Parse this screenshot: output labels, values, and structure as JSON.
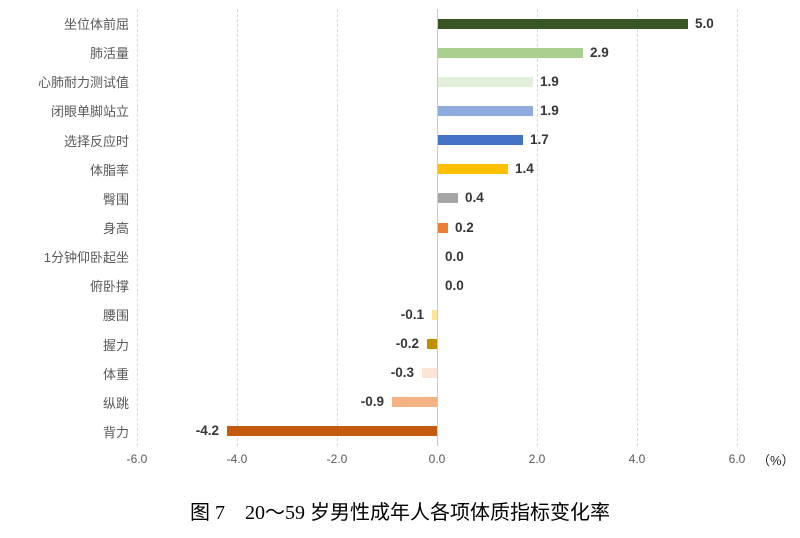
{
  "chart_data": {
    "type": "bar",
    "orientation": "horizontal",
    "caption": "图 7　20～59 岁男性成年人各项体质指标变化率",
    "unit_label": "（%）",
    "xlim": [
      -6,
      6
    ],
    "x_tick_step": 2,
    "x_ticks": [
      "-6.0",
      "-4.0",
      "-2.0",
      "0.0",
      "2.0",
      "4.0",
      "6.0"
    ],
    "grid": "vertical-dashed",
    "legend": "none",
    "categories": [
      "坐位体前屈",
      "肺活量",
      "心肺耐力测试值",
      "闭眼单脚站立",
      "选择反应时",
      "体脂率",
      "臀围",
      "身高",
      "1分钟仰卧起坐",
      "俯卧撑",
      "腰围",
      "握力",
      "体重",
      "纵跳",
      "背力"
    ],
    "values": [
      5.0,
      2.9,
      1.9,
      1.9,
      1.7,
      1.4,
      0.4,
      0.2,
      0.0,
      0.0,
      -0.1,
      -0.2,
      -0.3,
      -0.9,
      -4.2
    ],
    "value_labels": [
      "5.0",
      "2.9",
      "1.9",
      "1.9",
      "1.7",
      "1.4",
      "0.4",
      "0.2",
      "0.0",
      "0.0",
      "-0.1",
      "-0.2",
      "-0.3",
      "-0.9",
      "-4.2"
    ],
    "bar_colors": [
      "#375623",
      "#a9d08e",
      "#e2efda",
      "#8faadc",
      "#4472c4",
      "#ffc000",
      "#a6a6a6",
      "#ed7d31",
      null,
      null,
      "#ffe699",
      "#bf9000",
      "#fbe5d6",
      "#f4b183",
      "#c55a11"
    ]
  },
  "styles": {
    "grid_color": "#d9d9d9",
    "zero_line_color": "#c9c9c9",
    "category_label_color": "#595959",
    "tick_label_color": "#595959",
    "value_label_color": "#363636",
    "unit_label_color": "#262626",
    "background": "#ffffff"
  }
}
